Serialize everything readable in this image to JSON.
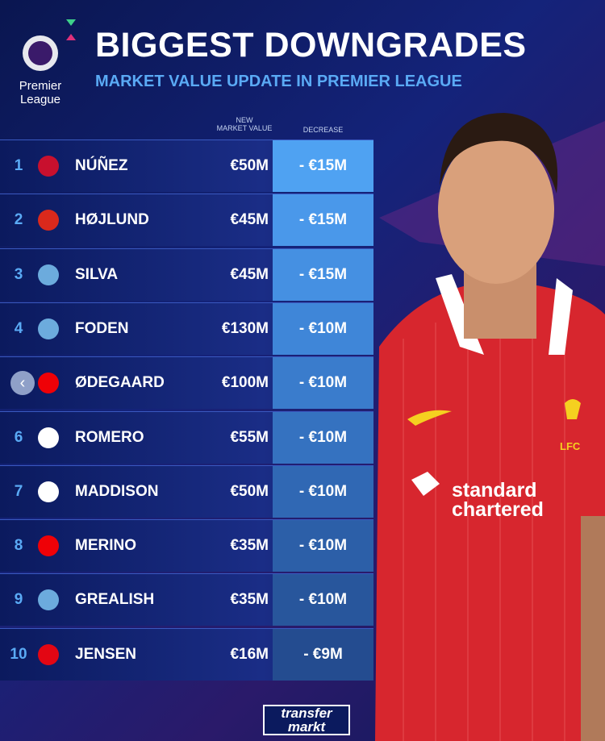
{
  "header": {
    "logo": [
      "Premier",
      "League"
    ],
    "title": "BIGGEST DOWNGRADES",
    "subtitle": "MARKET VALUE UPDATE IN PREMIER LEAGUE"
  },
  "table": {
    "columns": {
      "value": [
        "NEW",
        "MARKET VALUE"
      ],
      "decrease": "DECREASE"
    },
    "rows": [
      {
        "rank": "1",
        "player": "NÚÑEZ",
        "value": "€50M",
        "decrease": "- €15M"
      },
      {
        "rank": "2",
        "player": "HØJLUND",
        "value": "€45M",
        "decrease": "- €15M"
      },
      {
        "rank": "3",
        "player": "SILVA",
        "value": "€45M",
        "decrease": "- €15M"
      },
      {
        "rank": "4",
        "player": "FODEN",
        "value": "€130M",
        "decrease": "- €10M"
      },
      {
        "player": "ØDEGAARD",
        "value": "€100M",
        "decrease": "- €10M"
      },
      {
        "rank": "6",
        "player": "ROMERO",
        "value": "€55M",
        "decrease": "- €10M"
      },
      {
        "rank": "7",
        "player": "MADDISON",
        "value": "€50M",
        "decrease": "- €10M"
      },
      {
        "rank": "8",
        "player": "MERINO",
        "value": "€35M",
        "decrease": "- €10M"
      },
      {
        "rank": "9",
        "player": "GREALISH",
        "value": "€35M",
        "decrease": "- €10M"
      },
      {
        "rank": "10",
        "player": "JENSEN",
        "value": "€16M",
        "decrease": "- €9M"
      }
    ]
  },
  "shirt": {
    "sponsor": [
      "standard",
      "chartered"
    ],
    "crest": "LFC"
  },
  "footer": {
    "brand": [
      "transfer",
      "markt"
    ]
  }
}
